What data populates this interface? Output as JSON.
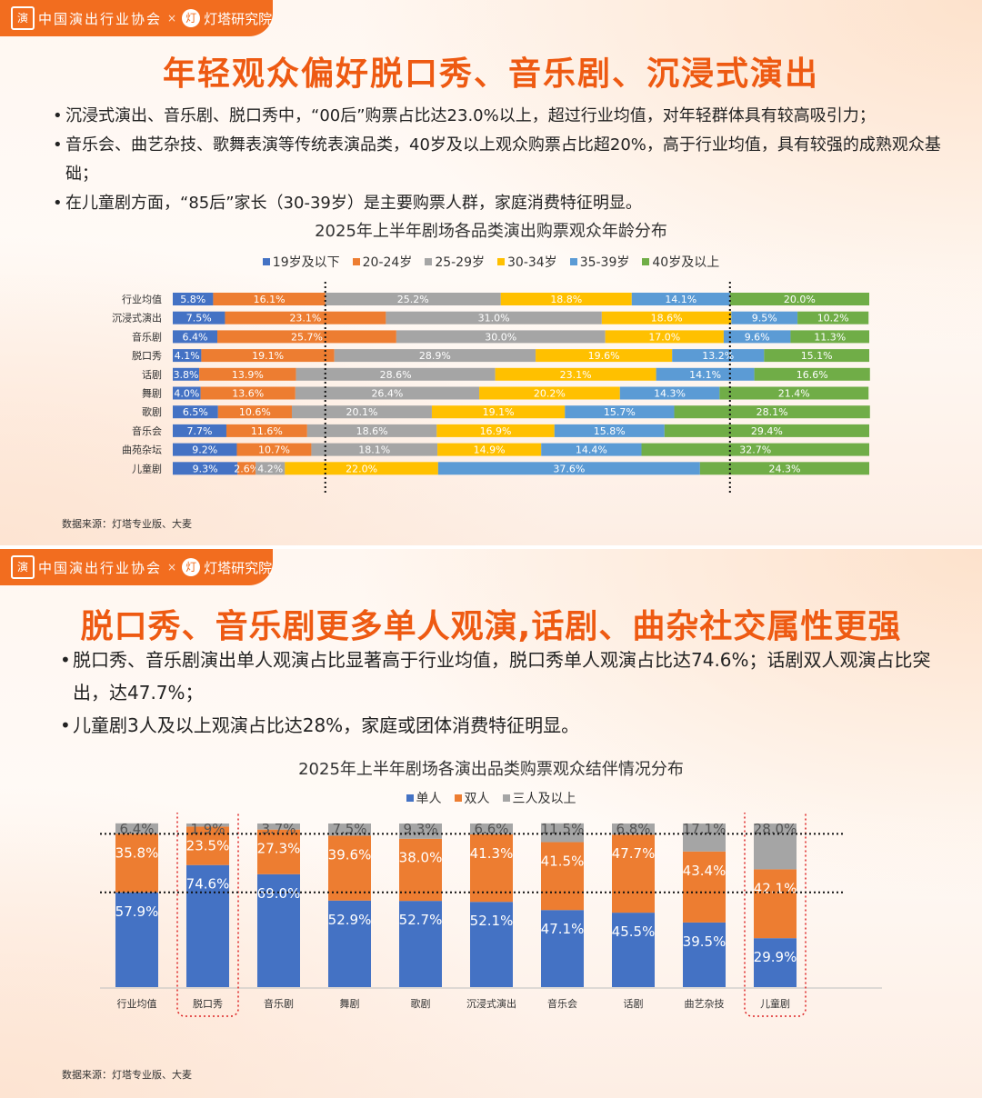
{
  "colors": {
    "blue": "#4472c4",
    "orange": "#ed7d31",
    "gray": "#a5a5a5",
    "yellow": "#ffc000",
    "lightblue": "#5b9bd5",
    "green": "#70ad47",
    "accent": "#f26d1f",
    "title": "#ee5a12"
  },
  "header": {
    "org1": "中国演出行业协会",
    "org1_mark": "演",
    "separator": "×",
    "org2": "灯塔研究院",
    "org2_mark": "灯"
  },
  "panel1": {
    "title": "年轻观众偏好脱口秀、音乐剧、沉浸式演出",
    "bullets": [
      "沉浸式演出、音乐剧、脱口秀中，“00后”购票占比达23.0%以上，超过行业均值，对年轻群体具有较高吸引力；",
      "音乐会、曲艺杂技、歌舞表演等传统表演品类，40岁及以上观众购票占比超20%，高于行业均值，具有较强的成熟观众基础；",
      "在儿童剧方面，“85后”家长（30-39岁）是主要购票人群，家庭消费特征明显。"
    ],
    "source": "数据来源：灯塔专业版、大麦"
  },
  "panel2": {
    "title": "脱口秀、音乐剧更多单人观演,话剧、曲杂社交属性更强",
    "bullets": [
      "脱口秀、音乐剧演出单人观演占比显著高于行业均值，脱口秀单人观演占比达74.6%；话剧双人观演占比突出，达47.7%；",
      "儿童剧3人及以上观演占比达28%，家庭或团体消费特征明显。"
    ],
    "source": "数据来源：灯塔专业版、大麦"
  },
  "chart_data": [
    {
      "type": "bar",
      "orientation": "horizontal",
      "stacked": "100%",
      "title": "2025年上半年剧场各品类演出购票观众年龄分布",
      "legend_position": "top",
      "categories": [
        "行业均值",
        "沉浸式演出",
        "音乐剧",
        "脱口秀",
        "话剧",
        "舞剧",
        "歌剧",
        "音乐会",
        "曲苑杂坛",
        "儿童剧"
      ],
      "series": [
        {
          "name": "19岁及以下",
          "color": "#4472c4",
          "values": [
            5.8,
            7.5,
            6.4,
            4.1,
            3.8,
            4.0,
            6.5,
            7.7,
            9.2,
            9.3
          ]
        },
        {
          "name": "20-24岁",
          "color": "#ed7d31",
          "values": [
            16.1,
            23.1,
            25.7,
            19.1,
            13.9,
            13.6,
            10.6,
            11.6,
            10.7,
            2.6
          ]
        },
        {
          "name": "25-29岁",
          "color": "#a5a5a5",
          "values": [
            25.2,
            31.0,
            30.0,
            28.9,
            28.6,
            26.4,
            20.1,
            18.6,
            18.1,
            4.2
          ]
        },
        {
          "name": "30-34岁",
          "color": "#ffc000",
          "values": [
            18.8,
            18.6,
            17.0,
            19.6,
            23.1,
            20.2,
            19.1,
            16.9,
            14.9,
            22.0
          ]
        },
        {
          "name": "35-39岁",
          "color": "#5b9bd5",
          "values": [
            14.1,
            9.5,
            9.6,
            13.2,
            14.1,
            14.3,
            15.7,
            15.8,
            14.4,
            37.6
          ]
        },
        {
          "name": "40岁及以上",
          "color": "#70ad47",
          "values": [
            20.0,
            10.2,
            11.3,
            15.1,
            16.6,
            21.4,
            28.1,
            29.4,
            32.7,
            24.3
          ]
        }
      ],
      "reference_lines": "dotted vertical lines at the industry-average boundaries of 20-24岁 and 35-39岁"
    },
    {
      "type": "bar",
      "orientation": "vertical",
      "stacked": "100%",
      "title": "2025年上半年剧场各演出品类购票观众结伴情况分布",
      "legend_position": "top",
      "categories": [
        "行业均值",
        "脱口秀",
        "音乐剧",
        "舞剧",
        "歌剧",
        "沉浸式演出",
        "音乐会",
        "话剧",
        "曲艺杂技",
        "儿童剧"
      ],
      "series": [
        {
          "name": "单人",
          "color": "#4472c4",
          "values": [
            57.9,
            74.6,
            69.0,
            52.9,
            52.7,
            52.1,
            47.1,
            45.5,
            39.5,
            29.9
          ]
        },
        {
          "name": "双人",
          "color": "#ed7d31",
          "values": [
            35.8,
            23.5,
            27.3,
            39.6,
            38.0,
            41.3,
            41.5,
            47.7,
            43.4,
            42.1
          ]
        },
        {
          "name": "三人及以上",
          "color": "#a5a5a5",
          "values": [
            6.4,
            1.9,
            3.7,
            7.5,
            9.3,
            6.6,
            11.5,
            6.8,
            17.1,
            28.0
          ]
        }
      ],
      "highlighted_categories": [
        "脱口秀",
        "儿童剧"
      ],
      "reference_lines": "dotted horizontal lines at the industry-average segment boundaries"
    }
  ]
}
